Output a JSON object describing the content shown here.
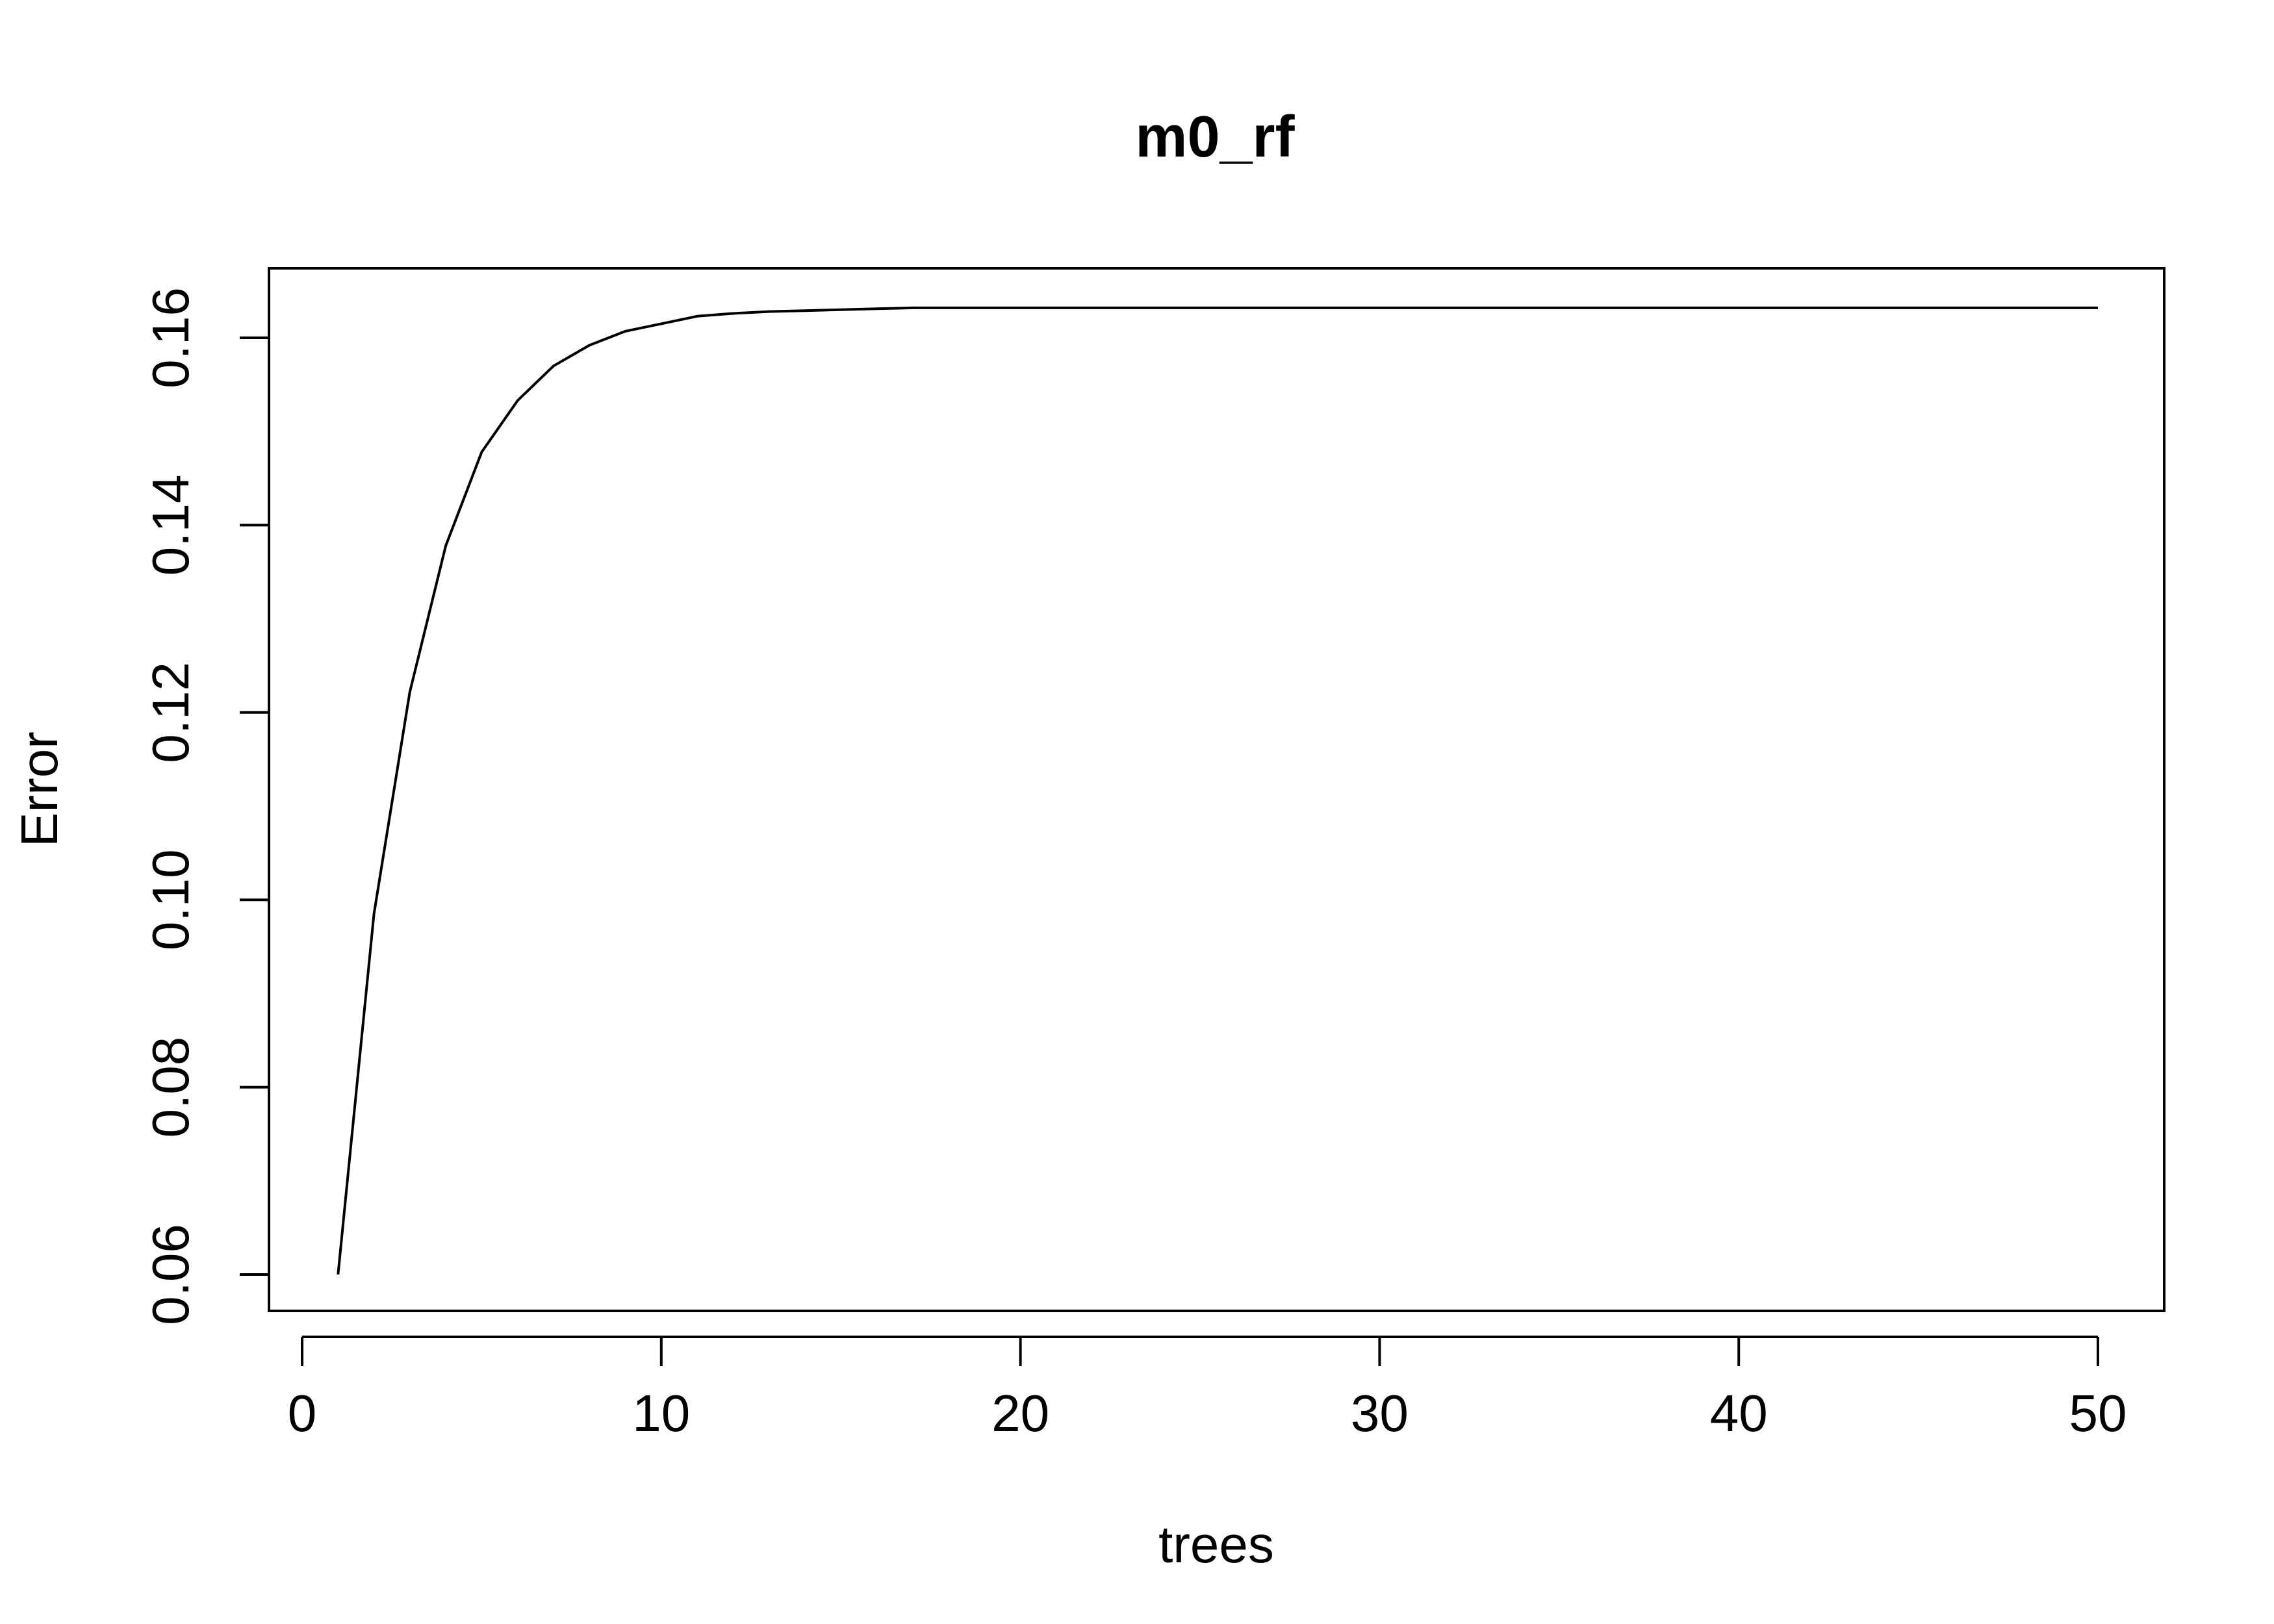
{
  "chart_data": {
    "type": "line",
    "title": "m0_rf",
    "xlabel": "trees",
    "ylabel": "Error",
    "xlim": [
      0,
      52
    ],
    "ylim": [
      0.056,
      0.167
    ],
    "x_ticks": [
      0,
      10,
      20,
      30,
      40,
      50
    ],
    "x_tick_labels": [
      "0",
      "10",
      "20",
      "30",
      "40",
      "50"
    ],
    "y_ticks": [
      0.06,
      0.08,
      0.1,
      0.12,
      0.14,
      0.16
    ],
    "y_tick_labels": [
      "0.06",
      "0.08",
      "0.10",
      "0.12",
      "0.14",
      "0.16"
    ],
    "grid": false,
    "line_color": "#000000",
    "series": [
      {
        "x": [
          1,
          2,
          3,
          4,
          5,
          6,
          7,
          8,
          9,
          10,
          11,
          12,
          13,
          14,
          15,
          16,
          17,
          18,
          19,
          20,
          21,
          22,
          23,
          24,
          25,
          26,
          27,
          28,
          29,
          30,
          31,
          32,
          33,
          34,
          35,
          36,
          37,
          38,
          39,
          40,
          41,
          42,
          43,
          44,
          45,
          46,
          47,
          48,
          49,
          50
        ],
        "values": [
          0.06,
          0.0985,
          0.1222,
          0.1378,
          0.1478,
          0.1533,
          0.157,
          0.1592,
          0.1607,
          0.1615,
          0.1623,
          0.1626,
          0.1628,
          0.1629,
          0.163,
          0.1631,
          0.1632,
          0.1632,
          0.1632,
          0.1632,
          0.1632,
          0.1632,
          0.1632,
          0.1632,
          0.1632,
          0.1632,
          0.1632,
          0.1632,
          0.1632,
          0.1632,
          0.1632,
          0.1632,
          0.1632,
          0.1632,
          0.1632,
          0.1632,
          0.1632,
          0.1632,
          0.1632,
          0.1632,
          0.1632,
          0.1632,
          0.1632,
          0.1632,
          0.1632,
          0.1632,
          0.1632,
          0.1632,
          0.1632,
          0.1632
        ]
      }
    ]
  }
}
